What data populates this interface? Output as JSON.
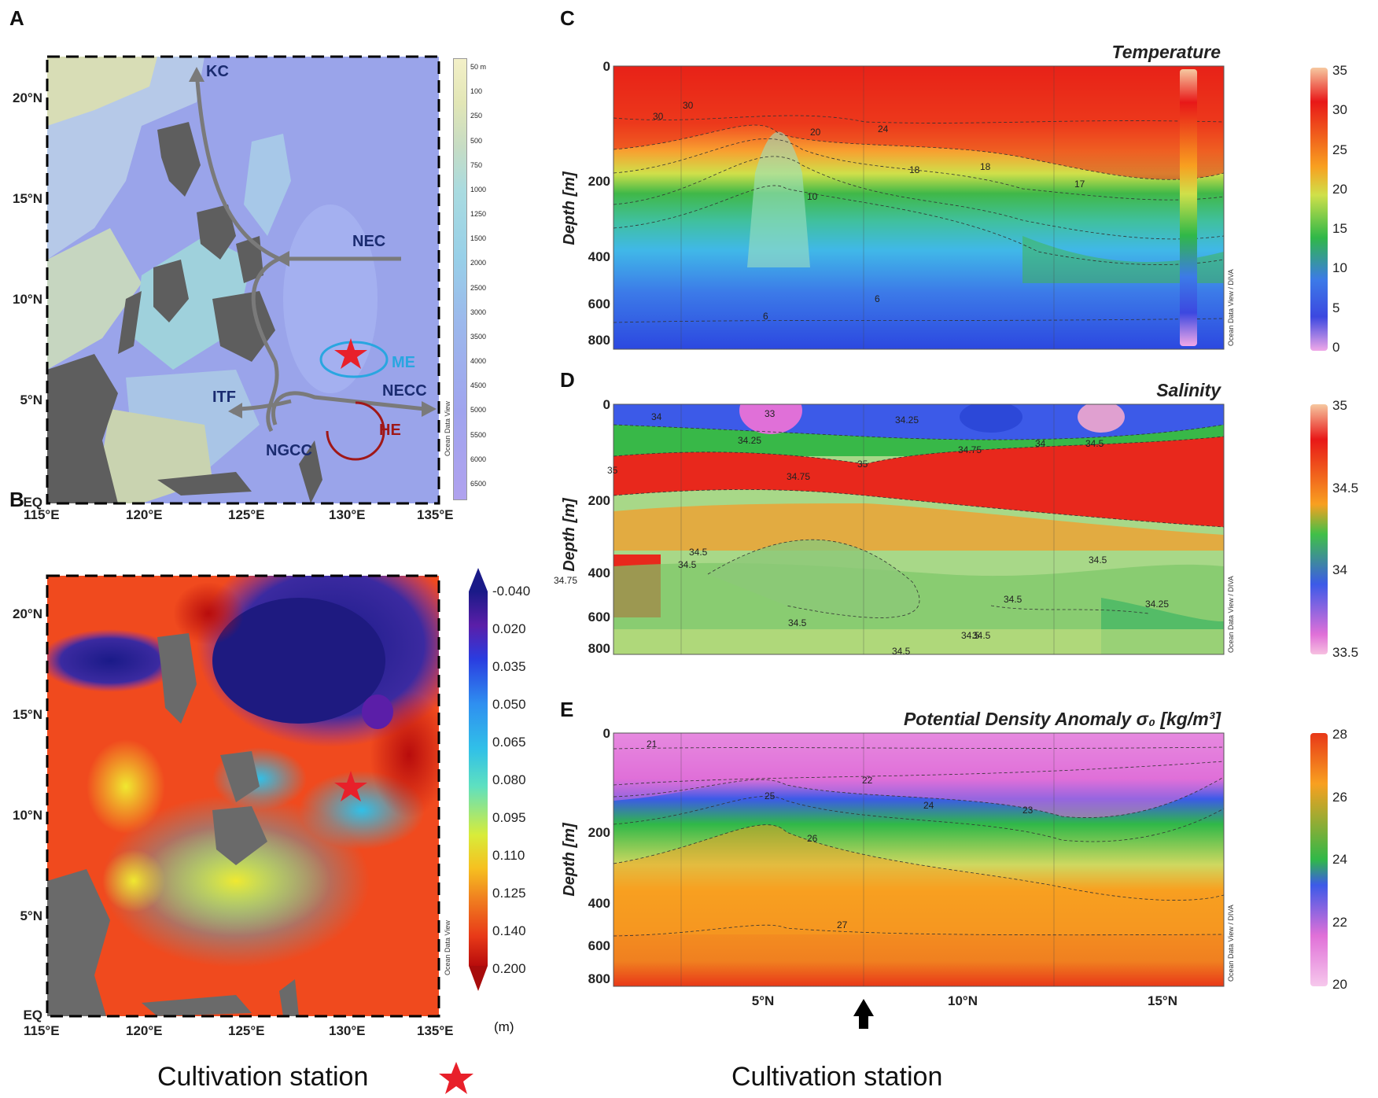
{
  "panels": {
    "A": {
      "label": "A",
      "x_ticks": [
        "115°E",
        "120°E",
        "125°E",
        "130°E",
        "135°E"
      ],
      "y_ticks": [
        "EQ",
        "5°N",
        "10°N",
        "15°N",
        "20°N"
      ],
      "colorbar_labels": [
        "50 m",
        "100",
        "250",
        "500",
        "750",
        "1000",
        "1250",
        "1500",
        "2000",
        "2500",
        "3000",
        "3500",
        "4000",
        "4500",
        "5000",
        "5500",
        "6000",
        "6500"
      ],
      "watermark": "Ocean Data View",
      "currents": {
        "kc": "KC",
        "nec": "NEC",
        "itf": "ITF",
        "ngcc": "NGCC",
        "necc": "NECC",
        "me": "ME",
        "he": "HE"
      }
    },
    "B": {
      "label": "B",
      "x_ticks": [
        "115°E",
        "120°E",
        "125°E",
        "130°E",
        "135°E"
      ],
      "y_ticks": [
        "EQ",
        "5°N",
        "10°N",
        "15°N",
        "20°N"
      ],
      "colorbar_labels": [
        "-0.040",
        "0.020",
        "0.035",
        "0.050",
        "0.065",
        "0.080",
        "0.095",
        "0.110",
        "0.125",
        "0.140",
        "0.200"
      ],
      "unit": "(m)",
      "watermark": "Ocean Data View"
    },
    "C": {
      "label": "C",
      "title": "Temperature",
      "ylabel": "Depth [m]",
      "y_ticks": [
        "0",
        "200",
        "400",
        "600",
        "800"
      ],
      "colorbar_ticks": [
        "35",
        "30",
        "25",
        "20",
        "15",
        "10",
        "5",
        "0"
      ],
      "contour_labels": [
        "30",
        "30",
        "24",
        "20",
        "18",
        "18",
        "17",
        "10",
        "6",
        "6"
      ],
      "watermark": "Ocean Data View / DIVA"
    },
    "D": {
      "label": "D",
      "title": "Salinity",
      "ylabel": "Depth [m]",
      "y_ticks": [
        "0",
        "200",
        "400",
        "600",
        "800"
      ],
      "colorbar_ticks": [
        "35",
        "34.5",
        "34",
        "33.5"
      ],
      "contour_labels": [
        "34",
        "33",
        "34.25",
        "34.25",
        "34.75",
        "34",
        "34.5",
        "35",
        "34.75",
        "35",
        "34.5",
        "34.5",
        "34.5",
        "34.75",
        "34.5",
        "34.5",
        "34.5",
        "34.5",
        "34.5",
        "34.25"
      ],
      "watermark": "Ocean Data View / DIVA"
    },
    "E": {
      "label": "E",
      "title": "Potential Density Anomaly σ₀ [kg/m³]",
      "ylabel": "Depth [m]",
      "y_ticks": [
        "0",
        "200",
        "400",
        "600",
        "800"
      ],
      "x_ticks": [
        "5°N",
        "10°N",
        "15°N"
      ],
      "colorbar_ticks": [
        "28",
        "26",
        "24",
        "22",
        "20"
      ],
      "contour_labels": [
        "21",
        "22",
        "25",
        "24",
        "23",
        "26",
        "27"
      ],
      "watermark": "Ocean Data View / DIVA"
    }
  },
  "captions": {
    "left": "Cultivation station",
    "right": "Cultivation station"
  },
  "colors": {
    "station_star": "#e8202a",
    "arrow_gray": "#7a7a7a",
    "current_label": "#1a2b70",
    "me_cyan": "#29a6e0",
    "he_red": "#a01818"
  },
  "chart_data": [
    {
      "panel": "A",
      "type": "map",
      "description_layer": "bathymetry",
      "xlim": [
        115,
        135
      ],
      "ylim": [
        0,
        22
      ],
      "station": {
        "lon": 130.5,
        "lat": 7.5
      }
    },
    {
      "panel": "B",
      "type": "heatmap",
      "xlim": [
        115,
        135
      ],
      "ylim": [
        0,
        22
      ],
      "unit": "m",
      "station": {
        "lon": 130.5,
        "lat": 7
      }
    },
    {
      "panel": "C",
      "type": "heatmap",
      "title": "Temperature",
      "ylabel": "Depth [m]",
      "y_ticks": [
        0,
        200,
        400,
        600,
        800
      ],
      "clim": [
        0,
        35
      ],
      "station_lat": 7.7
    },
    {
      "panel": "D",
      "type": "heatmap",
      "title": "Salinity",
      "ylabel": "Depth [m]",
      "y_ticks": [
        0,
        200,
        400,
        600,
        800
      ],
      "clim": [
        33.3,
        35.3
      ],
      "station_lat": 7.7
    },
    {
      "panel": "E",
      "type": "heatmap",
      "title": "Potential Density Anomaly σ₀ [kg/m³]",
      "ylabel": "Depth [m]",
      "x_ticks": [
        "5°N",
        "10°N",
        "15°N"
      ],
      "y_ticks": [
        0,
        200,
        400,
        600,
        800
      ],
      "clim": [
        20,
        28
      ],
      "station_lat": 7.7
    }
  ]
}
